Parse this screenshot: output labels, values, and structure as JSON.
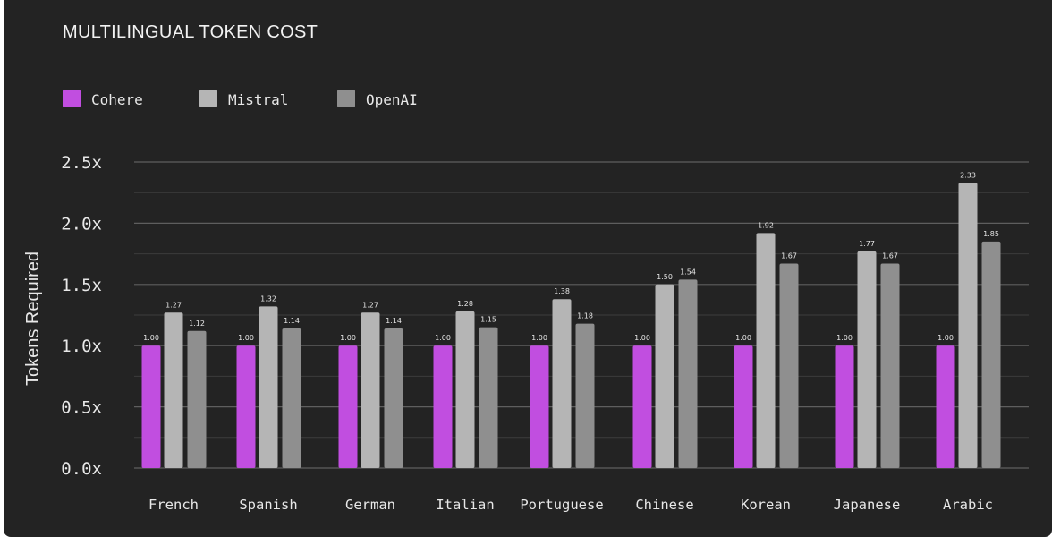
{
  "chart_data": {
    "type": "bar",
    "title": "MULTILINGUAL TOKEN COST",
    "ylabel": "Tokens Required",
    "xlabel": "",
    "ylim": [
      0,
      2.5
    ],
    "yticks": [
      0,
      0.5,
      1.0,
      1.5,
      2.0,
      2.5
    ],
    "ytick_labels": [
      "0.0x",
      "0.5x",
      "1.0x",
      "1.5x",
      "2.0x",
      "2.5x"
    ],
    "grid": true,
    "legend_position": "top-left",
    "categories": [
      "French",
      "Spanish",
      "German",
      "Italian",
      "Portuguese",
      "Chinese",
      "Korean",
      "Japanese",
      "Arabic"
    ],
    "series": [
      {
        "name": "Cohere",
        "color": "#c14ee0",
        "values": [
          1.0,
          1.0,
          1.0,
          1.0,
          1.0,
          1.0,
          1.0,
          1.0,
          1.0
        ],
        "labels": [
          "1.00",
          "1.00",
          "1.00",
          "1.00",
          "1.00",
          "1.00",
          "1.00",
          "1.00",
          "1.00"
        ]
      },
      {
        "name": "Mistral",
        "color": "#b5b5b5",
        "values": [
          1.27,
          1.32,
          1.27,
          1.28,
          1.38,
          1.5,
          1.92,
          1.77,
          2.33
        ],
        "labels": [
          "1.27",
          "1.32",
          "1.27",
          "1.28",
          "1.38",
          "1.50",
          "1.92",
          "1.77",
          "2.33"
        ]
      },
      {
        "name": "OpenAI",
        "color": "#8f8f8f",
        "values": [
          1.12,
          1.14,
          1.14,
          1.15,
          1.18,
          1.54,
          1.67,
          1.67,
          1.85
        ],
        "labels": [
          "1.12",
          "1.14",
          "1.14",
          "1.15",
          "1.18",
          "1.54",
          "1.67",
          "1.67",
          "1.85"
        ]
      }
    ]
  }
}
